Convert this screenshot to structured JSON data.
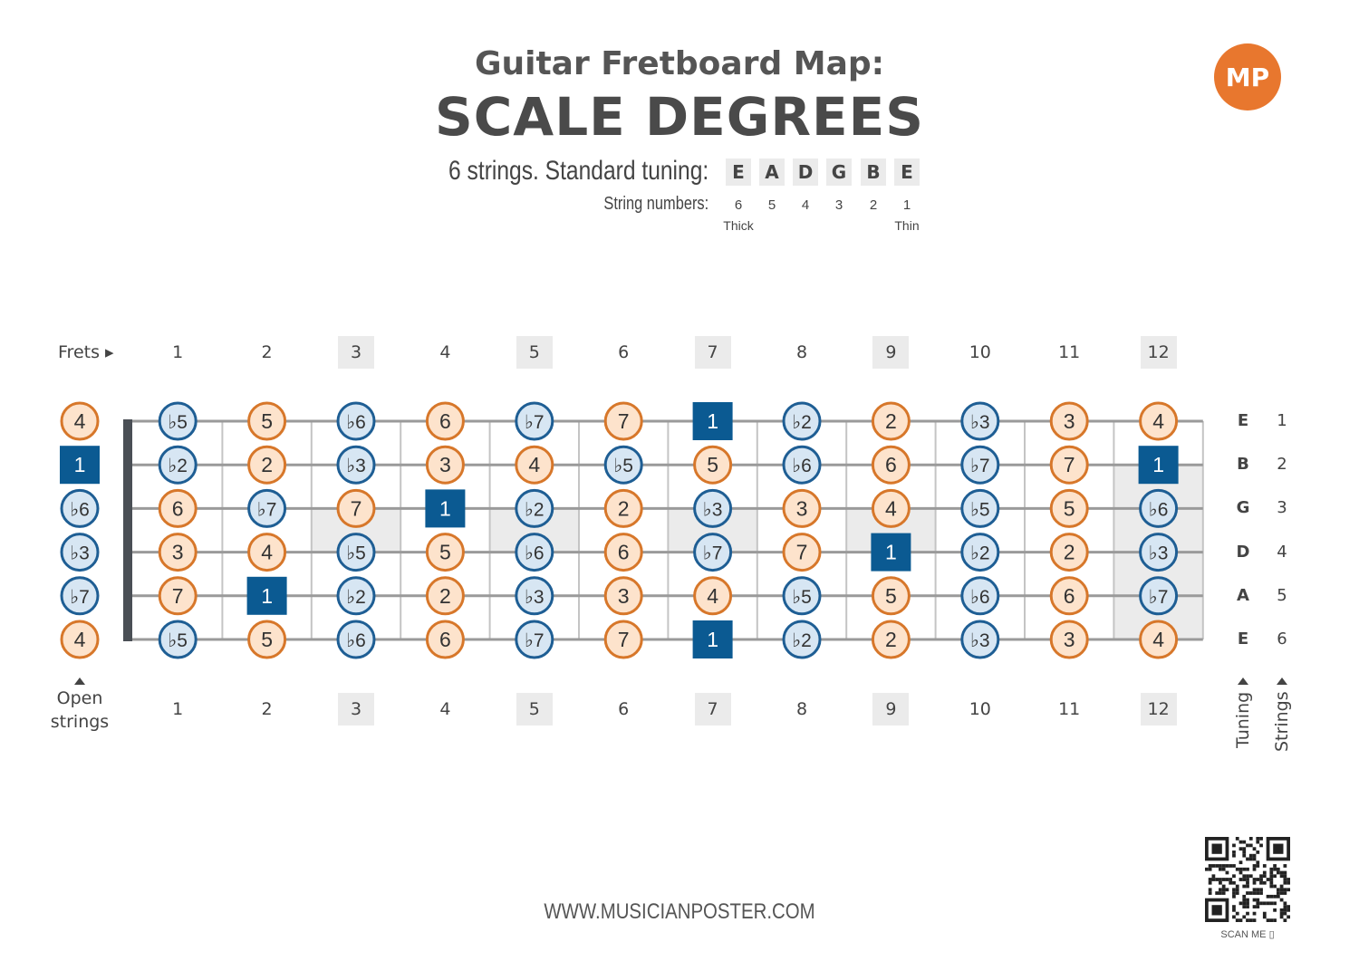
{
  "header": {
    "title_line1": "Guitar Fretboard Map:",
    "title_line2": "SCALE DEGREES",
    "tuning_label": "6 strings. Standard tuning:",
    "tuning_notes": [
      "E",
      "A",
      "D",
      "G",
      "B",
      "E"
    ],
    "string_numbers_label": "String numbers:",
    "string_numbers": [
      "6",
      "5",
      "4",
      "3",
      "2",
      "1"
    ],
    "thick_label": "Thick",
    "thin_label": "Thin",
    "logo_text": "MP"
  },
  "fretboard": {
    "frets_label": "Frets ▸",
    "fret_numbers": [
      "1",
      "2",
      "3",
      "4",
      "5",
      "6",
      "7",
      "8",
      "9",
      "10",
      "11",
      "12"
    ],
    "highlighted_frets": [
      "3",
      "5",
      "7",
      "9",
      "12"
    ],
    "open_strings_label_1": "Open",
    "open_strings_label_2": "strings",
    "tuning_axis_label": "Tuning",
    "strings_axis_label": "Strings",
    "right_tuning": [
      "E",
      "B",
      "G",
      "D",
      "A",
      "E"
    ],
    "right_strings": [
      "1",
      "2",
      "3",
      "4",
      "5",
      "6"
    ],
    "open_degrees": [
      "4",
      "1",
      "♭6",
      "♭3",
      "♭7",
      "4"
    ],
    "rows": [
      [
        "♭5",
        "5",
        "♭6",
        "6",
        "♭7",
        "7",
        "1",
        "♭2",
        "2",
        "♭3",
        "3",
        "4"
      ],
      [
        "♭2",
        "2",
        "♭3",
        "3",
        "4",
        "♭5",
        "5",
        "♭6",
        "6",
        "♭7",
        "7",
        "1"
      ],
      [
        "6",
        "♭7",
        "7",
        "1",
        "♭2",
        "2",
        "♭3",
        "3",
        "4",
        "♭5",
        "5",
        "♭6"
      ],
      [
        "3",
        "4",
        "♭5",
        "5",
        "♭6",
        "6",
        "♭7",
        "7",
        "1",
        "♭2",
        "2",
        "♭3"
      ],
      [
        "7",
        "1",
        "♭2",
        "2",
        "♭3",
        "3",
        "4",
        "♭5",
        "5",
        "♭6",
        "6",
        "♭7"
      ],
      [
        "♭5",
        "5",
        "♭6",
        "6",
        "♭7",
        "7",
        "1",
        "♭2",
        "2",
        "♭3",
        "3",
        "4"
      ]
    ],
    "colors": {
      "natural_fill": "#fde3cc",
      "natural_stroke": "#d7772a",
      "flat_fill": "#d7e6f3",
      "flat_stroke": "#1e5e94",
      "root_fill": "#0b5a92",
      "string_color": "#9a9a9a",
      "fret_color": "#c4c4c4",
      "nut_color": "#4a4f55",
      "marker_fill": "#ebebeb"
    }
  },
  "footer": {
    "url": "WWW.MUSICIANPOSTER.COM",
    "scan_me": "SCAN ME"
  }
}
